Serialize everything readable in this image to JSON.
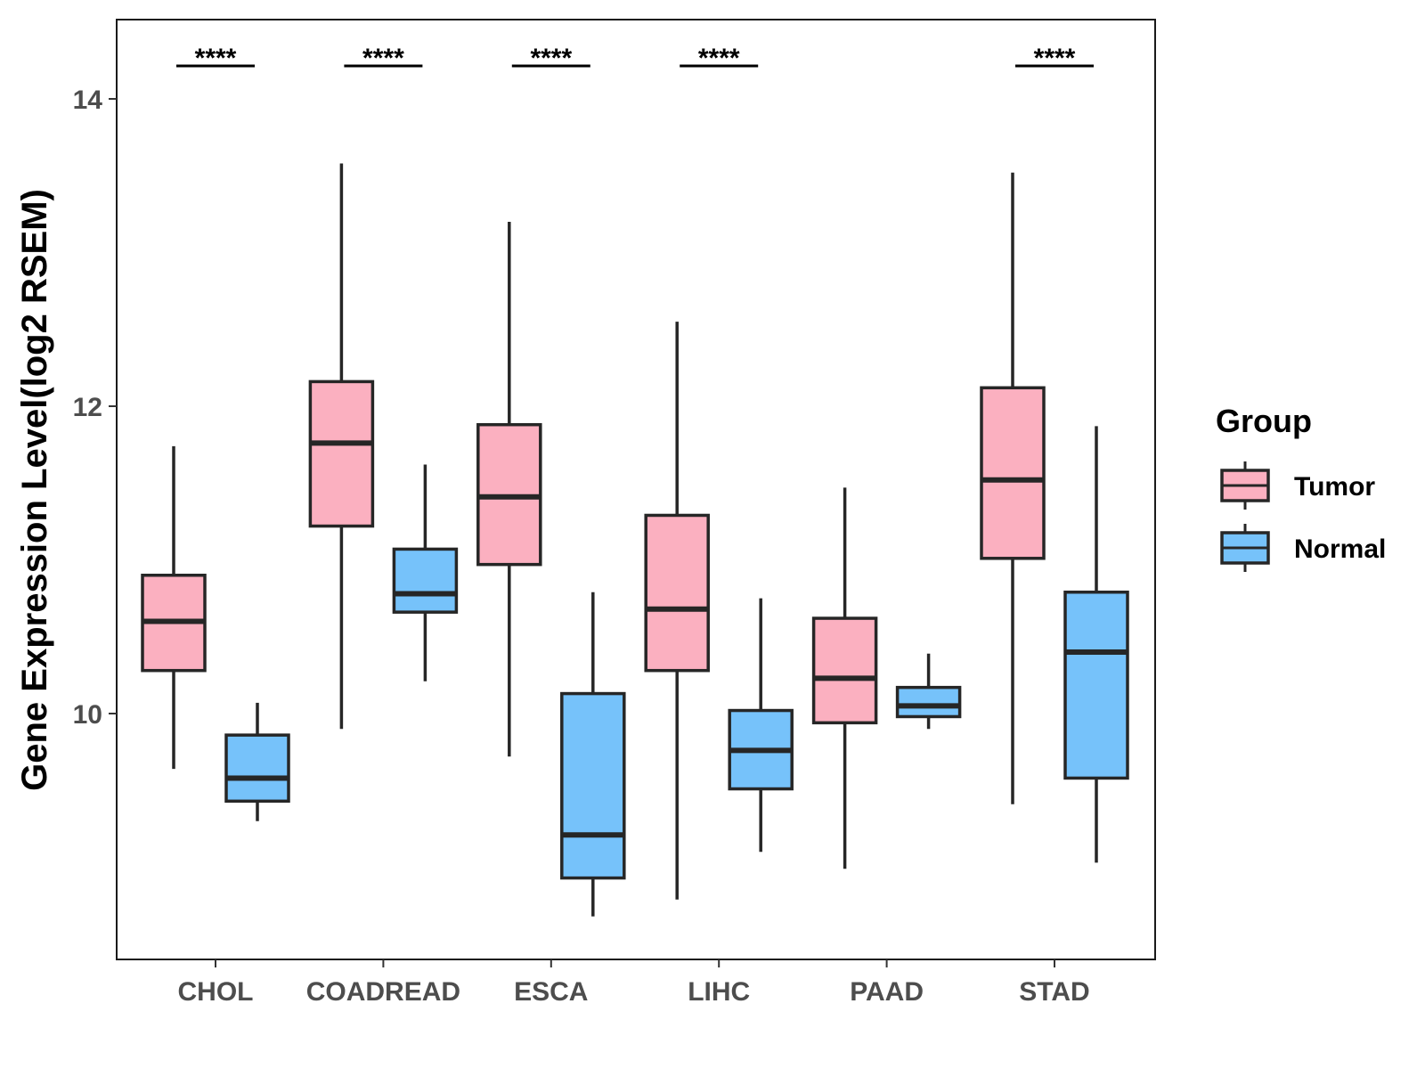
{
  "chart_data": {
    "type": "boxplot",
    "title": "",
    "xlabel": "",
    "ylabel": "Gene Expression Level(log2 RSEM)",
    "ylim": [
      8.6,
      14.5
    ],
    "yticks": [
      10,
      12,
      14
    ],
    "ytick_labels": [
      "10",
      "12",
      "14"
    ],
    "categories": [
      "CHOL",
      "COADREAD",
      "ESCA",
      "LIHC",
      "PAAD",
      "STAD"
    ],
    "legend": {
      "title": "Group",
      "position": "right",
      "entries": [
        {
          "name": "Tumor",
          "color": "#fbb0c0"
        },
        {
          "name": "Normal",
          "color": "#76c2fa"
        }
      ]
    },
    "significance_label": "****",
    "significance": [
      "****",
      "****",
      "****",
      "****",
      "",
      "****"
    ],
    "series": [
      {
        "name": "Tumor",
        "color": "#fbb0c0",
        "boxes": [
          {
            "category": "CHOL",
            "min": 9.64,
            "q1": 10.28,
            "median": 10.6,
            "q3": 10.9,
            "max": 11.74
          },
          {
            "category": "COADREAD",
            "min": 9.9,
            "q1": 11.22,
            "median": 11.76,
            "q3": 12.16,
            "max": 13.58
          },
          {
            "category": "ESCA",
            "min": 9.72,
            "q1": 10.97,
            "median": 11.41,
            "q3": 11.88,
            "max": 13.2
          },
          {
            "category": "LIHC",
            "min": 8.79,
            "q1": 10.28,
            "median": 10.68,
            "q3": 11.29,
            "max": 12.55
          },
          {
            "category": "PAAD",
            "min": 8.99,
            "q1": 9.94,
            "median": 10.23,
            "q3": 10.62,
            "max": 11.47
          },
          {
            "category": "STAD",
            "min": 9.41,
            "q1": 11.01,
            "median": 11.52,
            "q3": 12.12,
            "max": 13.52
          }
        ]
      },
      {
        "name": "Normal",
        "color": "#76c2fa",
        "boxes": [
          {
            "category": "CHOL",
            "min": 9.3,
            "q1": 9.43,
            "median": 9.58,
            "q3": 9.86,
            "max": 10.07
          },
          {
            "category": "COADREAD",
            "min": 10.21,
            "q1": 10.66,
            "median": 10.78,
            "q3": 11.07,
            "max": 11.62
          },
          {
            "category": "ESCA",
            "min": 8.68,
            "q1": 8.93,
            "median": 9.21,
            "q3": 10.13,
            "max": 10.79
          },
          {
            "category": "LIHC",
            "min": 9.1,
            "q1": 9.51,
            "median": 9.76,
            "q3": 10.02,
            "max": 10.75
          },
          {
            "category": "PAAD",
            "min": 9.9,
            "q1": 9.98,
            "median": 10.05,
            "q3": 10.17,
            "max": 10.39
          },
          {
            "category": "STAD",
            "min": 9.03,
            "q1": 9.58,
            "median": 10.4,
            "q3": 10.79,
            "max": 11.87
          }
        ]
      }
    ]
  }
}
